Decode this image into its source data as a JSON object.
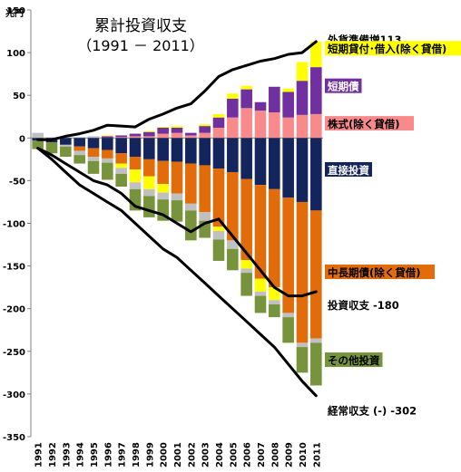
{
  "chart_data": {
    "type": "bar",
    "stacked": true,
    "title": "累計投資収支",
    "subtitle": "（1991 － 2011）",
    "ylabel": "兆円",
    "ylim": [
      -350,
      150
    ],
    "yticks": [
      150,
      100,
      50,
      0,
      -50,
      -100,
      -150,
      -200,
      -250,
      -300,
      -350
    ],
    "grid": false,
    "categories": [
      "1991",
      "1992",
      "1993",
      "1994",
      "1995",
      "1996",
      "1997",
      "1998",
      "1999",
      "2000",
      "2001",
      "2002",
      "2003",
      "2004",
      "2005",
      "2006",
      "2007",
      "2008",
      "2009",
      "2010",
      "2011"
    ],
    "positive_series": [
      {
        "name": "株式(除く貸借)",
        "color": "#f88a8c",
        "values": [
          0,
          0,
          0,
          0,
          0,
          0,
          1,
          2,
          2,
          5,
          6,
          3,
          6,
          12,
          24,
          35,
          32,
          30,
          24,
          27,
          28
        ]
      },
      {
        "name": "短期債",
        "color": "#7030a0",
        "values": [
          0,
          0,
          0,
          0,
          0,
          2,
          2,
          3,
          5,
          7,
          6,
          3,
          8,
          12,
          22,
          22,
          10,
          30,
          30,
          40,
          55
        ]
      },
      {
        "name": "短期貸付･借入(除く貸借)",
        "color": "#ffff00",
        "values": [
          0,
          0,
          0,
          0,
          0,
          1,
          0,
          0,
          1,
          1,
          2,
          0,
          2,
          4,
          6,
          4,
          0,
          0,
          4,
          22,
          30
        ]
      },
      {
        "name": "",
        "color": "#c0c0c0",
        "values": [
          6,
          0,
          1,
          1,
          2,
          0,
          0,
          0,
          0,
          0,
          0,
          0,
          0,
          0,
          0,
          0,
          0,
          0,
          0,
          0,
          0
        ]
      }
    ],
    "negative_series": [
      {
        "name": "直接投資",
        "color": "#13255c",
        "values": [
          -3,
          -5,
          -8,
          -10,
          -12,
          -14,
          -18,
          -22,
          -25,
          -27,
          -28,
          -30,
          -32,
          -36,
          -40,
          -48,
          -55,
          -60,
          -70,
          -75,
          -85
        ]
      },
      {
        "name": "中長期債(除く貸借)",
        "color": "#e36c0a",
        "values": [
          0,
          0,
          0,
          -5,
          -10,
          -10,
          -12,
          -15,
          -20,
          -27,
          -37,
          -47,
          -55,
          -68,
          -80,
          -95,
          -110,
          -115,
          -135,
          -165,
          -150
        ]
      },
      {
        "name": "",
        "color": "#ffff00",
        "values": [
          0,
          0,
          0,
          0,
          0,
          0,
          -5,
          -15,
          -15,
          -10,
          0,
          0,
          0,
          -5,
          0,
          -10,
          -15,
          -15,
          0,
          0,
          0
        ]
      },
      {
        "name": "",
        "color": "#c0c0c0",
        "values": [
          0,
          0,
          -2,
          -5,
          -5,
          -5,
          -7,
          -8,
          -8,
          -8,
          -8,
          -8,
          -10,
          -10,
          -10,
          -5,
          -5,
          -5,
          -5,
          -5,
          -5
        ]
      },
      {
        "name": "その他投資",
        "color": "#77933c",
        "values": [
          -10,
          -13,
          -12,
          -10,
          -15,
          -20,
          -15,
          -25,
          -25,
          -25,
          -25,
          -35,
          -20,
          -25,
          -25,
          -27,
          -20,
          -15,
          -30,
          -30,
          -50
        ]
      }
    ],
    "lines": [
      {
        "name": "外貨準備増",
        "color": "#000000",
        "values": [
          -2,
          -2,
          2,
          5,
          9,
          15,
          14,
          13,
          22,
          28,
          35,
          40,
          55,
          72,
          80,
          85,
          90,
          93,
          98,
          100,
          113
        ]
      },
      {
        "name": "投資収支",
        "color": "#000000",
        "values": [
          -12,
          -20,
          -30,
          -40,
          -50,
          -55,
          -65,
          -80,
          -85,
          -90,
          -100,
          -110,
          -100,
          -95,
          -115,
          -135,
          -155,
          -175,
          -185,
          -185,
          -180
        ]
      },
      {
        "name": "経常収支 (-)",
        "color": "#000000",
        "values": [
          -12,
          -25,
          -40,
          -55,
          -65,
          -75,
          -85,
          -100,
          -115,
          -130,
          -140,
          -155,
          -170,
          -185,
          -200,
          -215,
          -230,
          -245,
          -265,
          -285,
          -302
        ]
      }
    ],
    "labels": [
      {
        "text": "外貨準備増113",
        "value": 113,
        "bg": ""
      },
      {
        "text": "短期貸付･借入(除く貸借)",
        "value": 102,
        "bg": "#ffff00"
      },
      {
        "text": "短期債",
        "value": 58,
        "bg": "#7030a0"
      },
      {
        "text": "株式(除く貸借)",
        "value": 14,
        "bg": "#f88a8c"
      },
      {
        "text": "直接投資",
        "value": -40,
        "bg": "#13255c"
      },
      {
        "text": "中長期債(除く貸借)",
        "value": -160,
        "bg": "#e36c0a"
      },
      {
        "text": "投資収支  -180",
        "value": -198,
        "bg": ""
      },
      {
        "text": "その他投資",
        "value": -263,
        "bg": "#77933c"
      },
      {
        "text": "経常収支 (-) -302",
        "value": -322,
        "bg": ""
      }
    ]
  }
}
